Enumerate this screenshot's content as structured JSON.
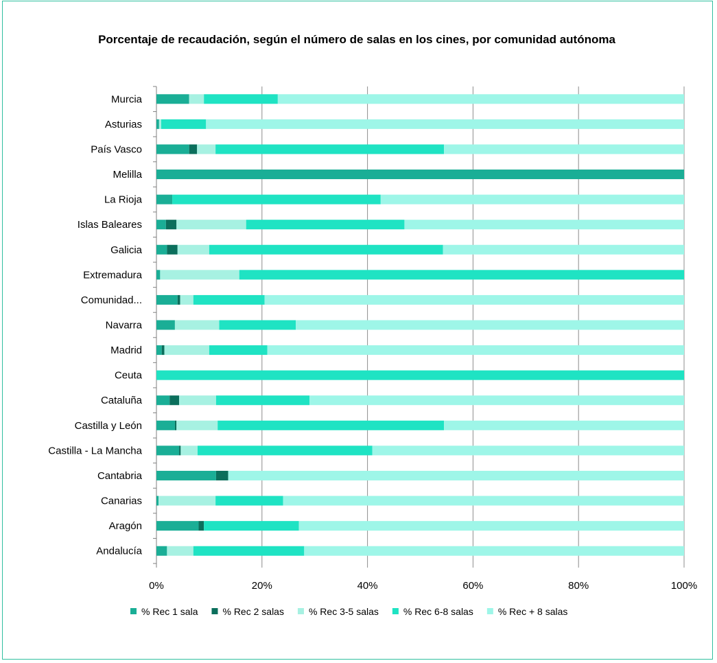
{
  "chart_data": {
    "type": "bar",
    "orientation": "horizontal",
    "stacked": "percent",
    "title": "Porcentaje de recaudación, según el número de salas en los cines, por comunidad autónoma",
    "categories": [
      "Murcia",
      "Asturias",
      "País Vasco",
      "Melilla",
      "La Rioja",
      "Islas Baleares",
      "Galicia",
      "Extremadura",
      "Comunidad...",
      "Navarra",
      "Madrid",
      "Ceuta",
      "Cataluña",
      "Castilla y León",
      "Castilla - La Mancha",
      "Cantabria",
      "Canarias",
      "Aragón",
      "Andalucía"
    ],
    "series": [
      {
        "name": "% Rec  1 sala",
        "color": "#1aae96",
        "values": [
          6.2,
          0.5,
          6.2,
          100,
          3.0,
          1.8,
          2.0,
          0.7,
          4.0,
          3.5,
          1.0,
          0,
          2.5,
          3.5,
          4.3,
          11.3,
          0.4,
          8.0,
          2.0
        ]
      },
      {
        "name": "% Rec  2 salas",
        "color": "#0b6f5c",
        "values": [
          0,
          0,
          1.5,
          0,
          0,
          2.0,
          2.0,
          0,
          0.5,
          0,
          0.5,
          0,
          1.8,
          0.3,
          0.3,
          2.3,
          0,
          1.0,
          0
        ]
      },
      {
        "name": "% Rec  3-5 salas",
        "color": "#a7f1e2",
        "values": [
          2.8,
          0.4,
          3.5,
          0,
          0,
          13.2,
          6.0,
          15.0,
          2.5,
          8.4,
          8.5,
          0,
          7.0,
          7.8,
          3.2,
          0,
          10.8,
          0,
          5.0
        ]
      },
      {
        "name": "% Rec  6-8 salas",
        "color": "#1fe3c3",
        "values": [
          14.0,
          8.5,
          43.3,
          0,
          39.5,
          30.0,
          44.3,
          84.3,
          13.5,
          14.5,
          11.0,
          100,
          17.7,
          42.9,
          33.1,
          0,
          12.8,
          18.0,
          21.0
        ]
      },
      {
        "name": "% Rec + 8 salas",
        "color": "#9ef6e8",
        "values": [
          77.0,
          90.6,
          45.5,
          0,
          57.5,
          53.0,
          45.7,
          0,
          79.5,
          73.6,
          79.0,
          0,
          71.0,
          45.5,
          59.1,
          86.4,
          76.0,
          73.0,
          72.0
        ]
      }
    ],
    "x_ticks": [
      "0%",
      "20%",
      "40%",
      "60%",
      "80%",
      "100%"
    ],
    "xlim": [
      0,
      100
    ],
    "grid": "vertical",
    "legend": "bottom"
  }
}
